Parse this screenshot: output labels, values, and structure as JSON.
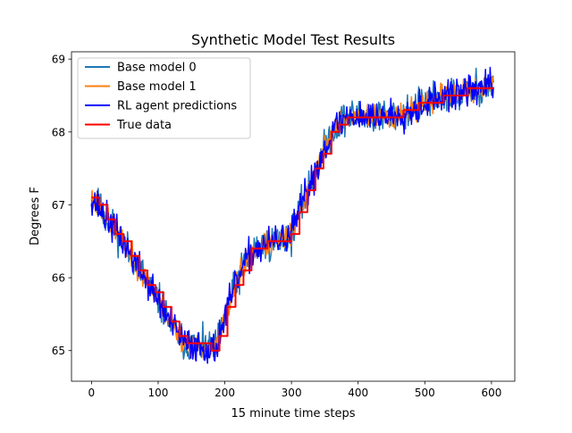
{
  "chart_data": {
    "type": "line",
    "title": "Synthetic Model Test Results",
    "xlabel": "15 minute time steps",
    "ylabel": "Degrees F",
    "xlim": [
      -30,
      635
    ],
    "ylim": [
      64.58,
      69.1
    ],
    "xticks": [
      0,
      100,
      200,
      300,
      400,
      500,
      600
    ],
    "yticks": [
      65,
      66,
      67,
      68,
      69
    ],
    "grid": false,
    "legend": "upper-left",
    "trend_x": [
      0,
      20,
      40,
      60,
      80,
      100,
      120,
      140,
      150,
      170,
      185,
      200,
      220,
      240,
      260,
      280,
      300,
      320,
      340,
      360,
      380,
      400,
      420,
      440,
      460,
      480,
      500,
      520,
      540,
      560,
      580,
      603
    ],
    "trend_y": [
      67.12,
      66.85,
      66.6,
      66.3,
      66.0,
      65.7,
      65.35,
      65.1,
      65.08,
      65.05,
      65.0,
      65.45,
      66.0,
      66.35,
      66.45,
      66.5,
      66.6,
      67.1,
      67.55,
      68.0,
      68.2,
      68.22,
      68.2,
      68.22,
      68.25,
      68.3,
      68.4,
      68.45,
      68.5,
      68.55,
      68.6,
      68.65
    ],
    "series": [
      {
        "name": "Base model 0",
        "color": "#1f77b4",
        "noise": 0.12,
        "seed": 11,
        "style": "noisy"
      },
      {
        "name": "Base model 1",
        "color": "#ff7f0e",
        "noise": 0.08,
        "seed": 23,
        "style": "noisy"
      },
      {
        "name": "RL agent predictions",
        "color": "#0000ff",
        "noise": 0.11,
        "seed": 37,
        "style": "noisy"
      },
      {
        "name": "True data",
        "color": "#ff0000",
        "noise": 0.0,
        "seed": 5,
        "style": "step"
      }
    ]
  }
}
